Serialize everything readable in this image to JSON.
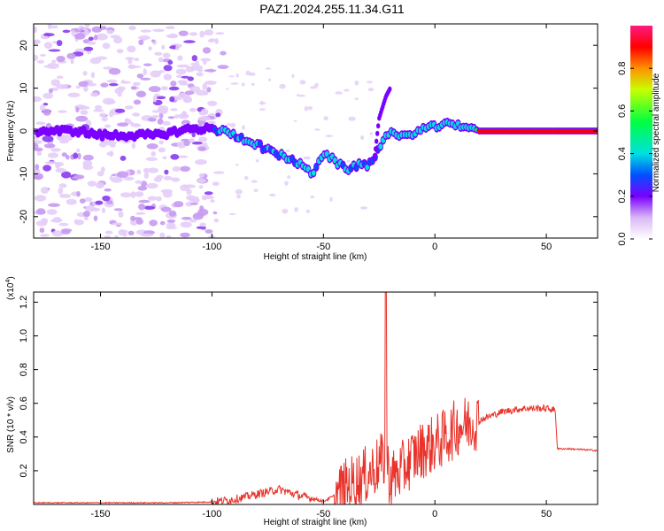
{
  "title": "PAZ1.2024.255.11.34.G11",
  "chart_data": [
    {
      "type": "heatmap",
      "xlabel": "Height of straight line (km)",
      "ylabel": "Frequency (Hz)",
      "xlim": [
        -180,
        73
      ],
      "ylim": [
        -25,
        25
      ],
      "xticks": [
        -150,
        -100,
        -50,
        0,
        50
      ],
      "yticks": [
        -20,
        -10,
        0,
        10,
        20
      ],
      "colorbar": {
        "label": "Normalized spectral amplitude",
        "range": [
          0,
          1
        ],
        "ticks": [
          0.0,
          0.2,
          0.4,
          0.6,
          0.8
        ]
      },
      "ridge": {
        "x": [
          -178,
          -170,
          -160,
          -150,
          -140,
          -125,
          -110,
          -100,
          -95,
          -90,
          -85,
          -80,
          -75,
          -70,
          -65,
          -60,
          -55,
          -50,
          -45,
          -40,
          -35,
          -30,
          -27,
          -24,
          -22,
          -20,
          -18,
          -15,
          -10,
          -5,
          0,
          5,
          10,
          15,
          20,
          30,
          40,
          50,
          60,
          73
        ],
        "freq": [
          0,
          0,
          0,
          -1,
          -1,
          -1,
          0.5,
          0.5,
          0,
          -1,
          -2,
          -3,
          -4.5,
          -5.5,
          -6.5,
          -8,
          -10,
          -5,
          -7,
          -9,
          -8,
          -8,
          -6,
          -3,
          -1,
          0,
          -1,
          -1.5,
          -0.5,
          0.5,
          1,
          1.5,
          1.5,
          1,
          0,
          0,
          0,
          0,
          0,
          0
        ]
      },
      "spike": {
        "x": [
          -27,
          -25,
          -22,
          -20
        ],
        "freq": [
          -6,
          3,
          8,
          10
        ]
      }
    },
    {
      "type": "line",
      "xlabel": "Height of straight line (km)",
      "ylabel": "SNR (10 * v/v)",
      "scale_label": "(x10",
      "scale_exp": "4",
      "xlim": [
        -180,
        73
      ],
      "ylim": [
        0,
        1.26
      ],
      "xticks": [
        -150,
        -100,
        -50,
        0,
        50
      ],
      "yticks": [
        0.2,
        0.4,
        0.6,
        0.8,
        1.0,
        1.2
      ],
      "series": [
        {
          "color": "#e8322a",
          "trend": {
            "x": [
              -180,
              -120,
              -100,
              -90,
              -80,
              -70,
              -60,
              -50,
              -45,
              -40,
              -35,
              -30,
              -25,
              -22,
              -20,
              -15,
              -10,
              -5,
              0,
              5,
              10,
              20,
              30,
              40,
              50,
              54,
              55,
              60,
              73
            ],
            "y": [
              0.01,
              0.01,
              0.015,
              0.03,
              0.06,
              0.09,
              0.05,
              0.02,
              0.05,
              0.1,
              0.14,
              0.18,
              0.24,
              0.27,
              0.15,
              0.2,
              0.28,
              0.33,
              0.36,
              0.4,
              0.46,
              0.5,
              0.55,
              0.57,
              0.57,
              0.56,
              0.33,
              0.33,
              0.32
            ]
          },
          "peak": {
            "x": -22,
            "y": 1.26
          }
        }
      ]
    }
  ]
}
